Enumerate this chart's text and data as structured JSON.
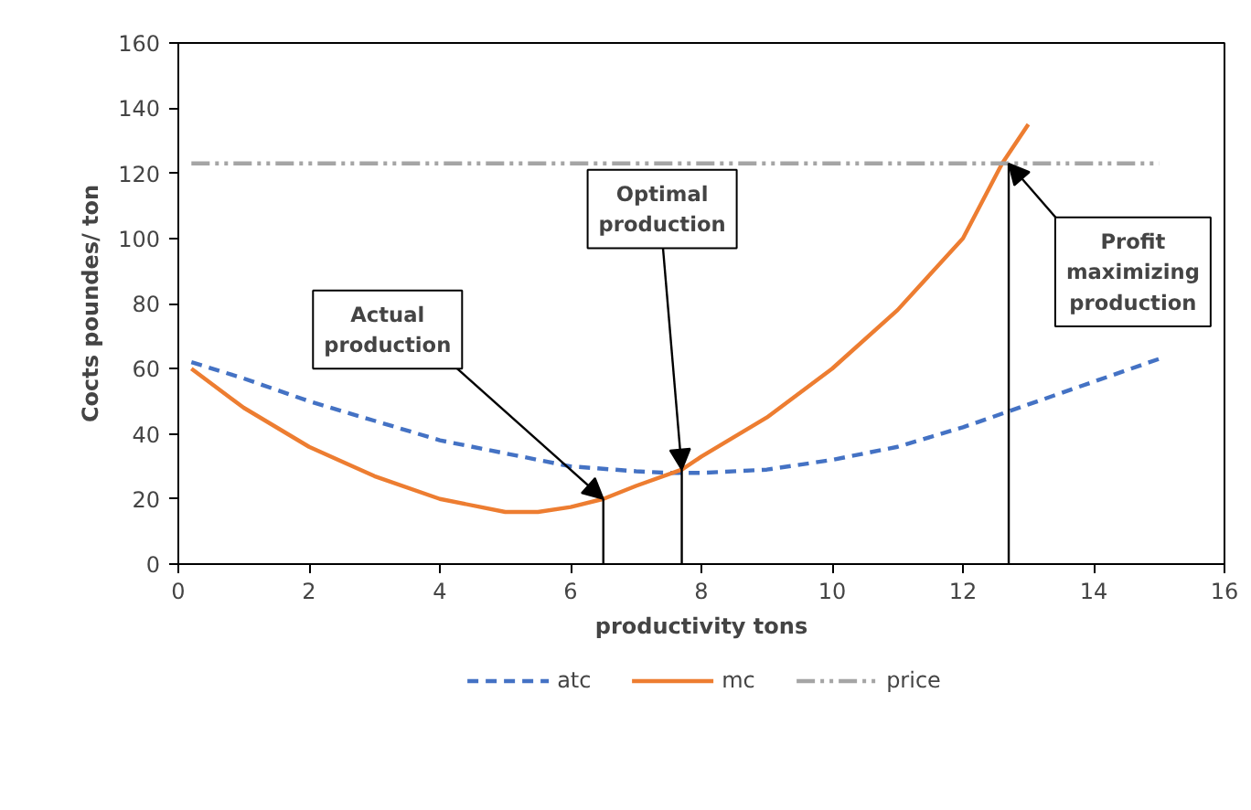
{
  "chart_data": {
    "type": "line",
    "xlabel": "productivity tons",
    "ylabel": "Cocts poundes/ ton",
    "xlim": [
      0,
      16
    ],
    "ylim": [
      0,
      160
    ],
    "xticks": [
      0,
      2,
      4,
      6,
      8,
      10,
      12,
      14,
      16
    ],
    "yticks": [
      0,
      20,
      40,
      60,
      80,
      100,
      120,
      140,
      160
    ],
    "grid": false,
    "legend": "bottom",
    "series": [
      {
        "name": "atc",
        "color": "#4472c4",
        "line_style": "dashed",
        "x": [
          0.2,
          1,
          2,
          3,
          4,
          5,
          6,
          7,
          7.5,
          8,
          9,
          10,
          11,
          12,
          13,
          14,
          15
        ],
        "values": [
          62,
          57,
          50,
          44,
          38,
          34,
          30,
          28.5,
          28,
          28,
          29,
          32,
          36,
          42,
          49,
          56,
          63
        ]
      },
      {
        "name": "mc",
        "color": "#ed7d31",
        "line_style": "solid",
        "x": [
          0.2,
          1,
          2,
          3,
          4,
          5,
          5.5,
          6,
          6.5,
          7,
          7.7,
          8,
          9,
          10,
          11,
          12,
          12.6,
          13
        ],
        "values": [
          60,
          48,
          36,
          27,
          20,
          16,
          16,
          17.5,
          20,
          24,
          29,
          33,
          45,
          60,
          78,
          100,
          123,
          135
        ]
      },
      {
        "name": "price",
        "color": "#a5a5a5",
        "line_style": "dashdotdot",
        "x": [
          0.2,
          15
        ],
        "values": [
          123,
          123
        ]
      },
      {
        "color": "#000000",
        "line_style": "solid",
        "x": [
          6.5,
          6.5,
          7,
          7.7,
          7.7,
          10,
          12.7,
          12.7
        ],
        "values": [
          0,
          20,
          null,
          0,
          29,
          null,
          0,
          123
        ]
      }
    ],
    "annotations": [
      {
        "text": "Actual production",
        "x": 6.5,
        "y": 20
      },
      {
        "text": "Optimal production",
        "x": 7.7,
        "y": 29
      },
      {
        "text": "Profit maximizing production",
        "x": 12.7,
        "y": 123
      }
    ]
  }
}
